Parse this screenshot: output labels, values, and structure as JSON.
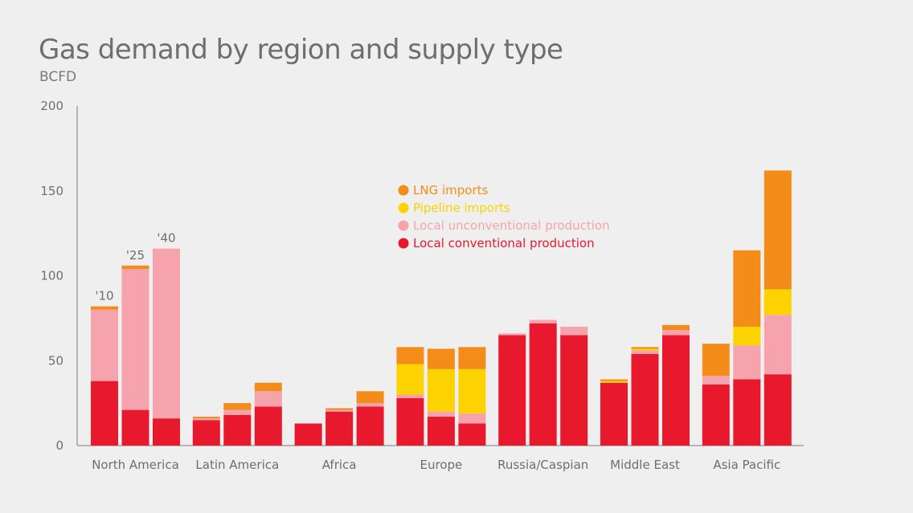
{
  "chart_data": {
    "type": "bar",
    "stacked": true,
    "title": "Gas demand by region and supply type",
    "subtitle": "BCFD",
    "ylim": [
      0,
      200
    ],
    "yticks": [
      0,
      50,
      100,
      150,
      200
    ],
    "grid": false,
    "legend_position": "top-center",
    "categories": [
      "North America",
      "Latin America",
      "Africa",
      "Europe",
      "Russia/Caspian",
      "Middle East",
      "Asia Pacific"
    ],
    "years": [
      "'10",
      "'25",
      "'40"
    ],
    "year_labels_shown_on": "North America",
    "series": [
      {
        "name": "Local conventional production",
        "color": "#e8192c",
        "values": [
          [
            38,
            21,
            16
          ],
          [
            15,
            18,
            23
          ],
          [
            13,
            20,
            23
          ],
          [
            28,
            17,
            13
          ],
          [
            65,
            72,
            65
          ],
          [
            37,
            54,
            65
          ],
          [
            36,
            39,
            42
          ]
        ]
      },
      {
        "name": "Local unconventional production",
        "color": "#f6a3ad",
        "values": [
          [
            42,
            83,
            100
          ],
          [
            1,
            3,
            9
          ],
          [
            0,
            1,
            2
          ],
          [
            2,
            3,
            6
          ],
          [
            1,
            2,
            5
          ],
          [
            0,
            2,
            3
          ],
          [
            5,
            20,
            35
          ]
        ]
      },
      {
        "name": "Pipeline imports",
        "color": "#fcd200",
        "values": [
          [
            0,
            0,
            0
          ],
          [
            0,
            0,
            0
          ],
          [
            0,
            0,
            0
          ],
          [
            18,
            25,
            26
          ],
          [
            0,
            0,
            0
          ],
          [
            1,
            1,
            0
          ],
          [
            0,
            11,
            15
          ]
        ]
      },
      {
        "name": "LNG imports",
        "color": "#f48c1a",
        "values": [
          [
            2,
            2,
            0
          ],
          [
            1,
            4,
            5
          ],
          [
            0,
            1,
            7
          ],
          [
            10,
            12,
            13
          ],
          [
            0,
            0,
            0
          ],
          [
            1,
            1,
            3
          ],
          [
            19,
            45,
            70
          ]
        ]
      }
    ],
    "legend_order": [
      "LNG imports",
      "Pipeline imports",
      "Local unconventional production",
      "Local conventional production"
    ]
  }
}
